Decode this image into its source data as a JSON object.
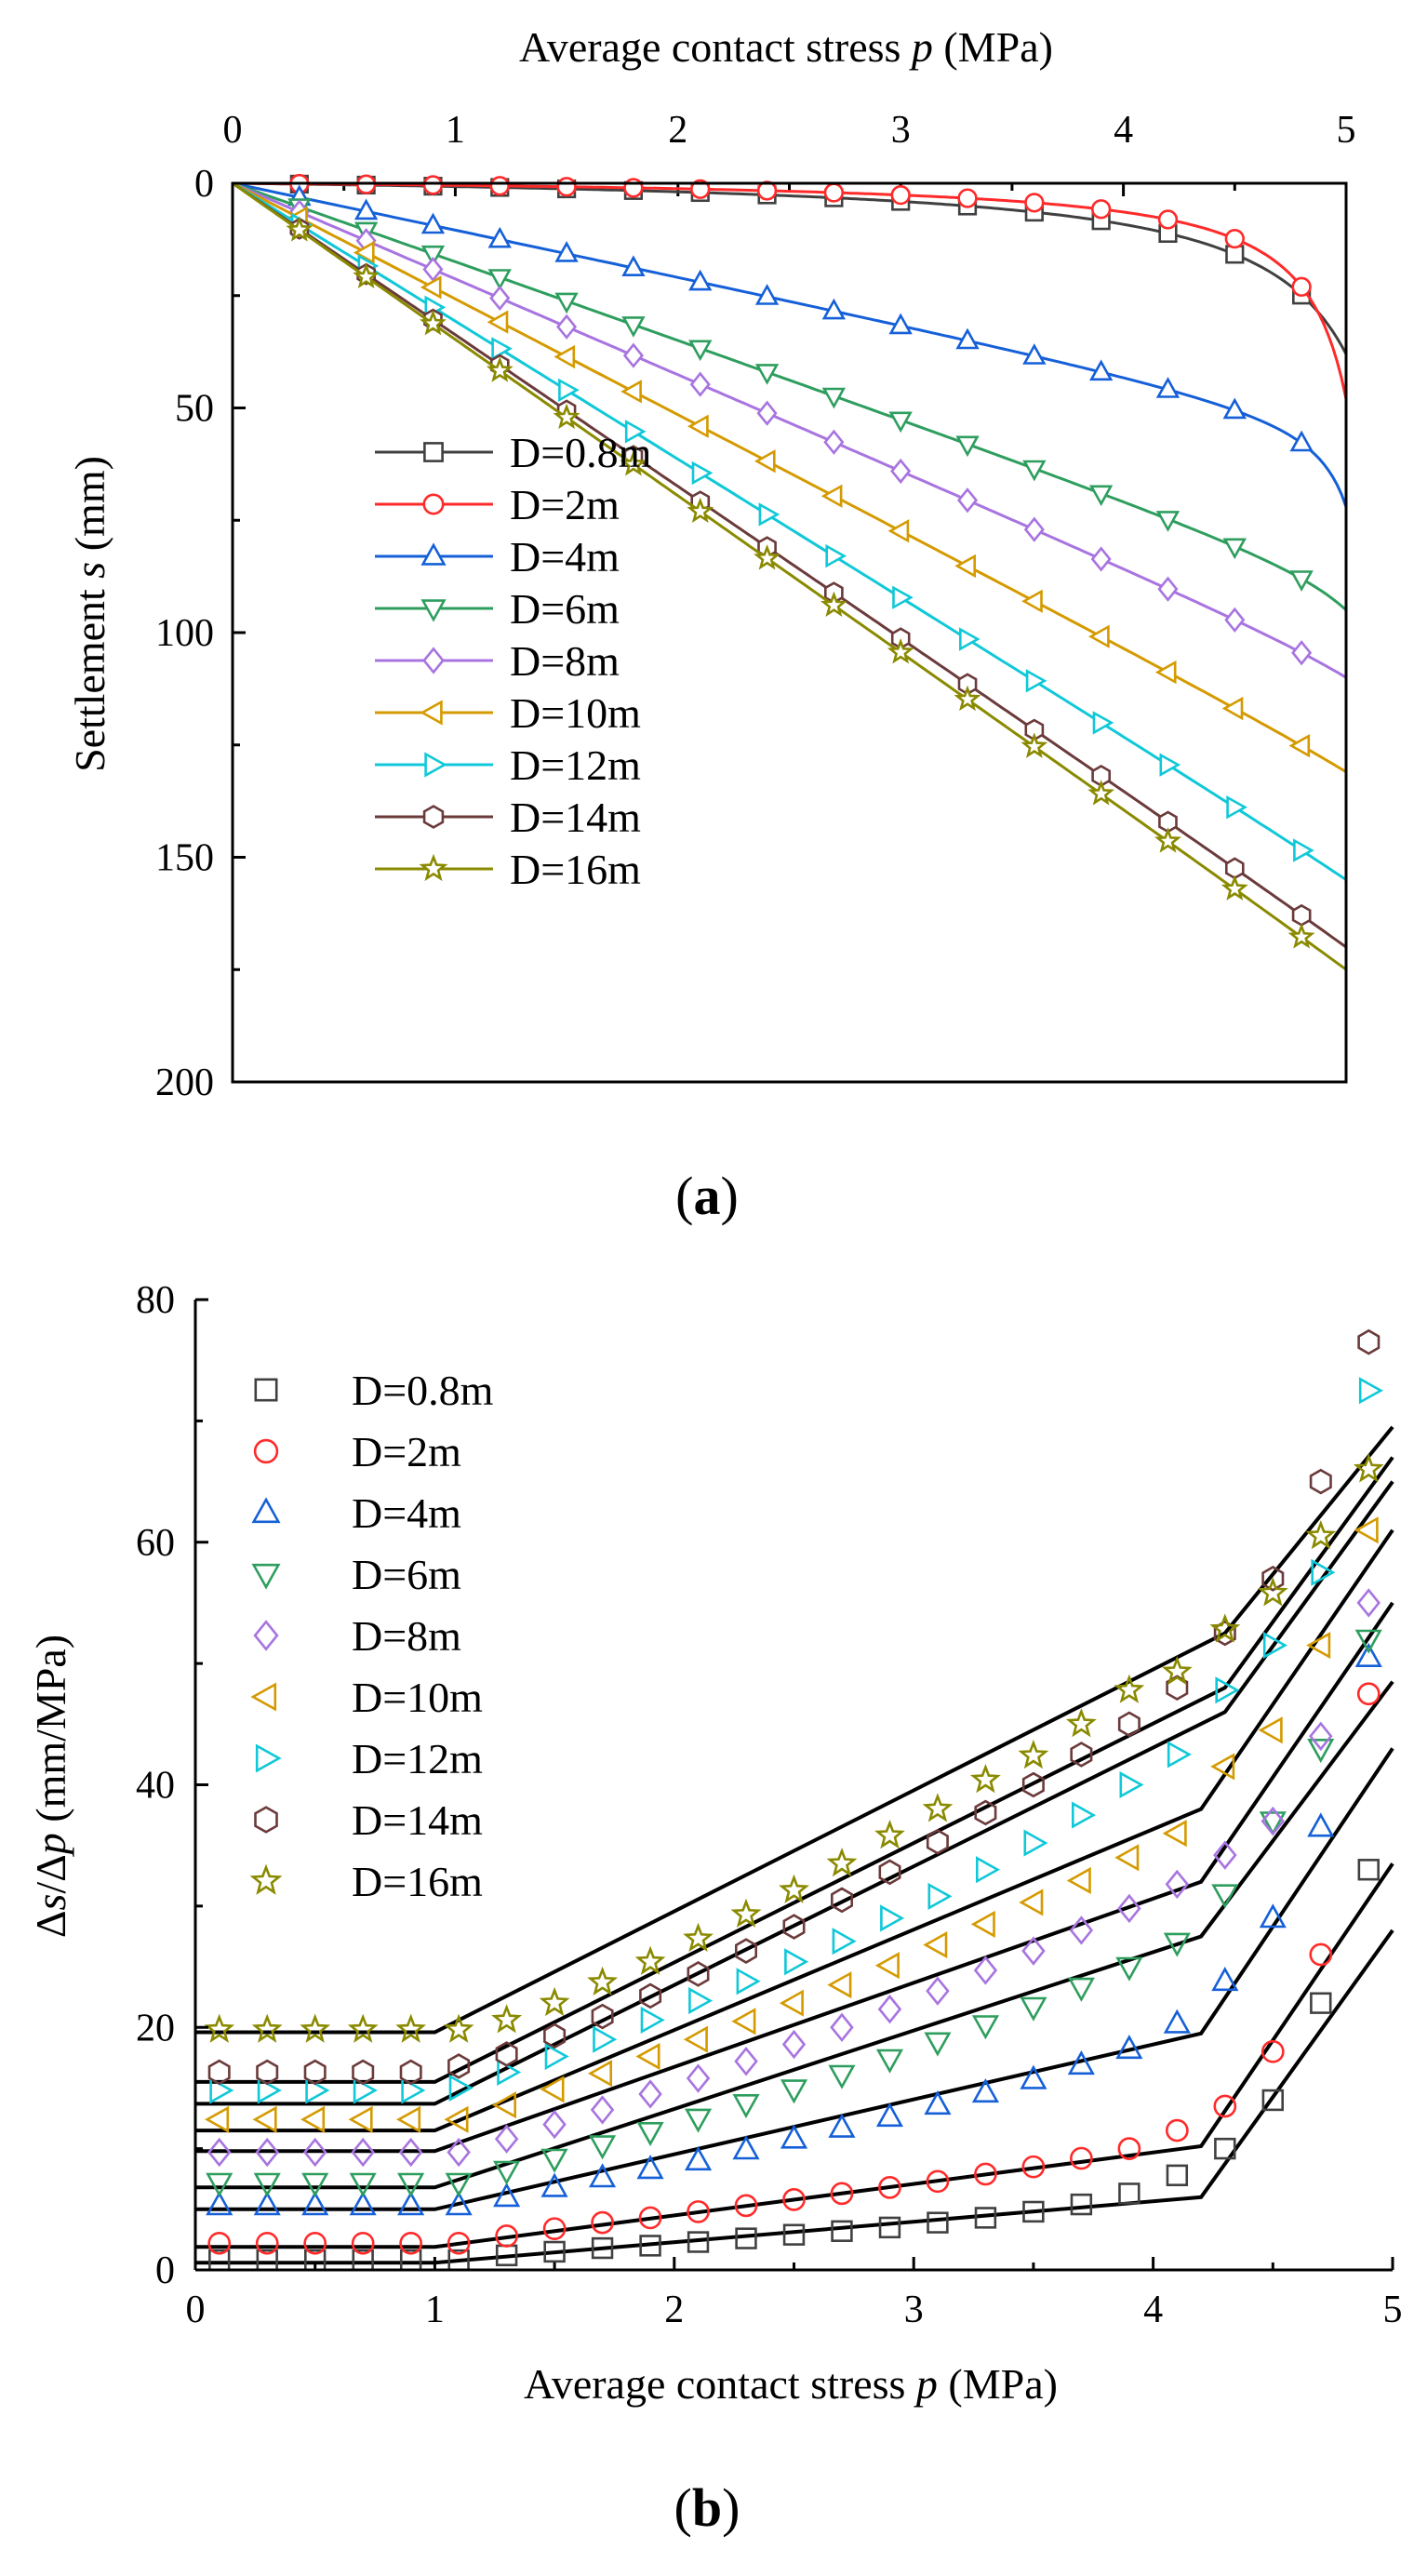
{
  "panel_a_label_text": "a",
  "panel_b_label_text": "b",
  "colors": {
    "D=0.8m": "#404040",
    "D=2m": "#ff2a2a",
    "D=4m": "#1560d8",
    "D=6m": "#2e9e5e",
    "D=8m": "#a874e0",
    "D=10m": "#d49a00",
    "D=12m": "#10c8d8",
    "D=14m": "#6b3a3a",
    "D=16m": "#8a8a00"
  },
  "chart_data": [
    {
      "type": "line",
      "panel": "a",
      "title": "",
      "xlabel_prefix": "Average contact stress ",
      "xlabel_var": "p",
      "xlabel_suffix": " (MPa)",
      "xaxis_position": "top",
      "ylabel_prefix": "Settlement ",
      "ylabel_var": "s",
      "ylabel_suffix": " (mm)",
      "yaxis_inverted": true,
      "xlim": [
        0,
        5
      ],
      "ylim": [
        0,
        200
      ],
      "xticks": [
        0,
        1,
        2,
        3,
        4,
        5
      ],
      "yticks": [
        0,
        50,
        100,
        150,
        200
      ],
      "legend_position": "left-middle",
      "legend": [
        "D=0.8m",
        "D=2m",
        "D=4m",
        "D=6m",
        "D=8m",
        "D=10m",
        "D=12m",
        "D=14m",
        "D=16m"
      ],
      "markers": [
        "square",
        "circle",
        "triangle-up",
        "triangle-down",
        "diamond",
        "triangle-left",
        "triangle-right",
        "hexagon",
        "star"
      ],
      "marker_x": [
        0.3,
        0.6,
        0.9,
        1.2,
        1.5,
        1.8,
        2.1,
        2.4,
        2.7,
        3.0,
        3.3,
        3.6,
        3.9,
        4.2,
        4.5,
        4.8
      ],
      "series": [
        {
          "name": "D=0.8m",
          "k": 0.006,
          "c": 0.0,
          "a": 5.43,
          "p_end": 5.0,
          "end_value": 38
        },
        {
          "name": "D=2m",
          "k": 0.015,
          "c": 0.0,
          "a": 5.2,
          "p_end": 5.0,
          "end_value": 48
        },
        {
          "name": "D=4m",
          "k": 0.06,
          "c": 1.0,
          "a": 5.15,
          "p_end": 5.0,
          "end_value": 72
        },
        {
          "name": "D=6m",
          "k": 0.08,
          "c": 2.8,
          "a": 5.3,
          "p_end": 5.0,
          "end_value": 95
        },
        {
          "name": "D=8m",
          "k": 0.08,
          "c": 4.2,
          "a": 5.5,
          "p_end": 5.0,
          "end_value": 110
        },
        {
          "name": "D=10m",
          "k": 0.082,
          "c": 5.5,
          "a": 5.7,
          "p_end": 5.0,
          "end_value": 131
        },
        {
          "name": "D=12m",
          "k": 0.078,
          "c": 6.8,
          "a": 5.9,
          "p_end": 5.0,
          "end_value": 155
        },
        {
          "name": "D=14m",
          "k": 0.08,
          "c": 7.5,
          "a": 6.0,
          "p_end": 5.0,
          "end_value": 170
        },
        {
          "name": "D=16m",
          "k": 0.08,
          "c": 8.2,
          "a": 6.1,
          "p_end": 5.0,
          "end_value": 175
        }
      ]
    },
    {
      "type": "scatter",
      "panel": "b",
      "title": "",
      "xlabel_prefix": "Average contact stress ",
      "xlabel_var": "p",
      "xlabel_suffix": " (MPa)",
      "ylabel_delta1": "Δ",
      "ylabel_var1": "s",
      "ylabel_slash": "/",
      "ylabel_delta2": "Δ",
      "ylabel_var2": "p",
      "ylabel_suffix": " (mm/MPa)",
      "xlim": [
        0,
        5
      ],
      "ylim": [
        0,
        80
      ],
      "xticks": [
        0,
        1,
        2,
        3,
        4,
        5
      ],
      "yticks": [
        0,
        20,
        40,
        60,
        80
      ],
      "legend_position": "top-left",
      "legend": [
        "D=0.8m",
        "D=2m",
        "D=4m",
        "D=6m",
        "D=8m",
        "D=10m",
        "D=12m",
        "D=14m",
        "D=16m"
      ],
      "markers": [
        "square",
        "circle",
        "triangle-up",
        "triangle-down",
        "diamond",
        "triangle-left",
        "triangle-right",
        "hexagon",
        "star"
      ],
      "x": [
        0.1,
        0.3,
        0.5,
        0.7,
        0.9,
        1.1,
        1.3,
        1.5,
        1.7,
        1.9,
        2.1,
        2.3,
        2.5,
        2.7,
        2.9,
        3.1,
        3.3,
        3.5,
        3.7,
        3.9,
        4.1,
        4.3,
        4.5,
        4.7,
        4.9
      ],
      "series": [
        {
          "name": "D=0.8m",
          "values": [
            0.8,
            0.8,
            0.8,
            0.8,
            0.8,
            0.8,
            1.2,
            1.5,
            1.8,
            2.0,
            2.3,
            2.6,
            2.9,
            3.2,
            3.5,
            3.9,
            4.3,
            4.8,
            5.4,
            6.3,
            7.8,
            10.0,
            14.0,
            22.0,
            33.0
          ]
        },
        {
          "name": "D=2m",
          "values": [
            2.2,
            2.2,
            2.2,
            2.2,
            2.2,
            2.2,
            2.8,
            3.4,
            3.9,
            4.3,
            4.8,
            5.3,
            5.8,
            6.3,
            6.8,
            7.3,
            7.9,
            8.5,
            9.2,
            10.0,
            11.5,
            13.5,
            18.0,
            26.0,
            47.5
          ]
        },
        {
          "name": "D=4m",
          "values": [
            5.3,
            5.3,
            5.3,
            5.3,
            5.3,
            5.3,
            6.0,
            6.8,
            7.6,
            8.3,
            9.0,
            9.9,
            10.8,
            11.7,
            12.6,
            13.6,
            14.6,
            15.7,
            16.9,
            18.2,
            20.3,
            23.8,
            29.0,
            36.5,
            50.5
          ]
        },
        {
          "name": "D=6m",
          "values": [
            7.2,
            7.2,
            7.2,
            7.2,
            7.2,
            7.2,
            8.2,
            9.2,
            10.3,
            11.4,
            12.5,
            13.7,
            14.9,
            16.1,
            17.4,
            18.8,
            20.2,
            21.7,
            23.3,
            25.0,
            27.0,
            31.0,
            37.0,
            43.0,
            52.0
          ]
        },
        {
          "name": "D=8m",
          "values": [
            9.7,
            9.7,
            9.7,
            9.7,
            9.7,
            9.7,
            10.8,
            12.0,
            13.2,
            14.5,
            15.8,
            17.2,
            18.6,
            20.0,
            21.5,
            23.0,
            24.7,
            26.3,
            28.0,
            29.8,
            31.8,
            34.2,
            37.0,
            44.0,
            55.0
          ]
        },
        {
          "name": "D=10m",
          "values": [
            12.4,
            12.4,
            12.4,
            12.4,
            12.4,
            12.4,
            13.6,
            14.9,
            16.2,
            17.6,
            19.0,
            20.5,
            22.0,
            23.5,
            25.1,
            26.8,
            28.5,
            30.3,
            32.1,
            34.0,
            36.0,
            41.5,
            44.5,
            51.5,
            61.0
          ]
        },
        {
          "name": "D=12m",
          "values": [
            14.8,
            14.8,
            14.8,
            14.8,
            14.8,
            15.0,
            16.3,
            17.6,
            19.0,
            20.6,
            22.2,
            23.8,
            25.4,
            27.1,
            29.0,
            30.8,
            33.0,
            35.2,
            37.5,
            40.0,
            42.5,
            47.8,
            51.5,
            57.5,
            72.5
          ]
        },
        {
          "name": "D=14m",
          "values": [
            16.3,
            16.3,
            16.3,
            16.3,
            16.3,
            16.8,
            17.8,
            19.3,
            20.9,
            22.6,
            24.4,
            26.3,
            28.3,
            30.5,
            32.8,
            35.3,
            37.7,
            40.0,
            42.5,
            45.0,
            48.0,
            52.5,
            57.0,
            65.0,
            76.5
          ]
        },
        {
          "name": "D=16m",
          "values": [
            19.8,
            19.8,
            19.8,
            19.8,
            19.8,
            19.8,
            20.6,
            22.0,
            23.7,
            25.4,
            27.3,
            29.3,
            31.3,
            33.5,
            35.8,
            38.0,
            40.4,
            42.4,
            45.0,
            47.8,
            49.3,
            52.8,
            55.8,
            60.5,
            66.0
          ]
        }
      ],
      "fit_lines": [
        {
          "name": "D=0.8m",
          "p1": 1.0,
          "p2": 4.2,
          "v0": 0.6,
          "v1": 6.0,
          "v_end": 28.0
        },
        {
          "name": "D=2m",
          "p1": 1.0,
          "p2": 4.2,
          "v0": 1.9,
          "v1": 10.2,
          "v_end": 33.5
        },
        {
          "name": "D=4m",
          "p1": 1.0,
          "p2": 4.2,
          "v0": 5.0,
          "v1": 19.5,
          "v_end": 43.0
        },
        {
          "name": "D=6m",
          "p1": 1.0,
          "p2": 4.2,
          "v0": 6.8,
          "v1": 27.5,
          "v_end": 48.5
        },
        {
          "name": "D=8m",
          "p1": 1.0,
          "p2": 4.2,
          "v0": 9.8,
          "v1": 32.0,
          "v_end": 55.0
        },
        {
          "name": "D=10m",
          "p1": 1.0,
          "p2": 4.2,
          "v0": 11.5,
          "v1": 38.0,
          "v_end": 61.0
        },
        {
          "name": "D=12m",
          "p1": 1.0,
          "p2": 4.3,
          "v0": 13.7,
          "v1": 46.0,
          "v_end": 65.0
        },
        {
          "name": "D=14m",
          "p1": 1.0,
          "p2": 4.3,
          "v0": 15.5,
          "v1": 48.0,
          "v_end": 67.0
        },
        {
          "name": "D=16m",
          "p1": 1.0,
          "p2": 4.3,
          "v0": 19.6,
          "v1": 52.5,
          "v_end": 69.5
        }
      ]
    }
  ]
}
